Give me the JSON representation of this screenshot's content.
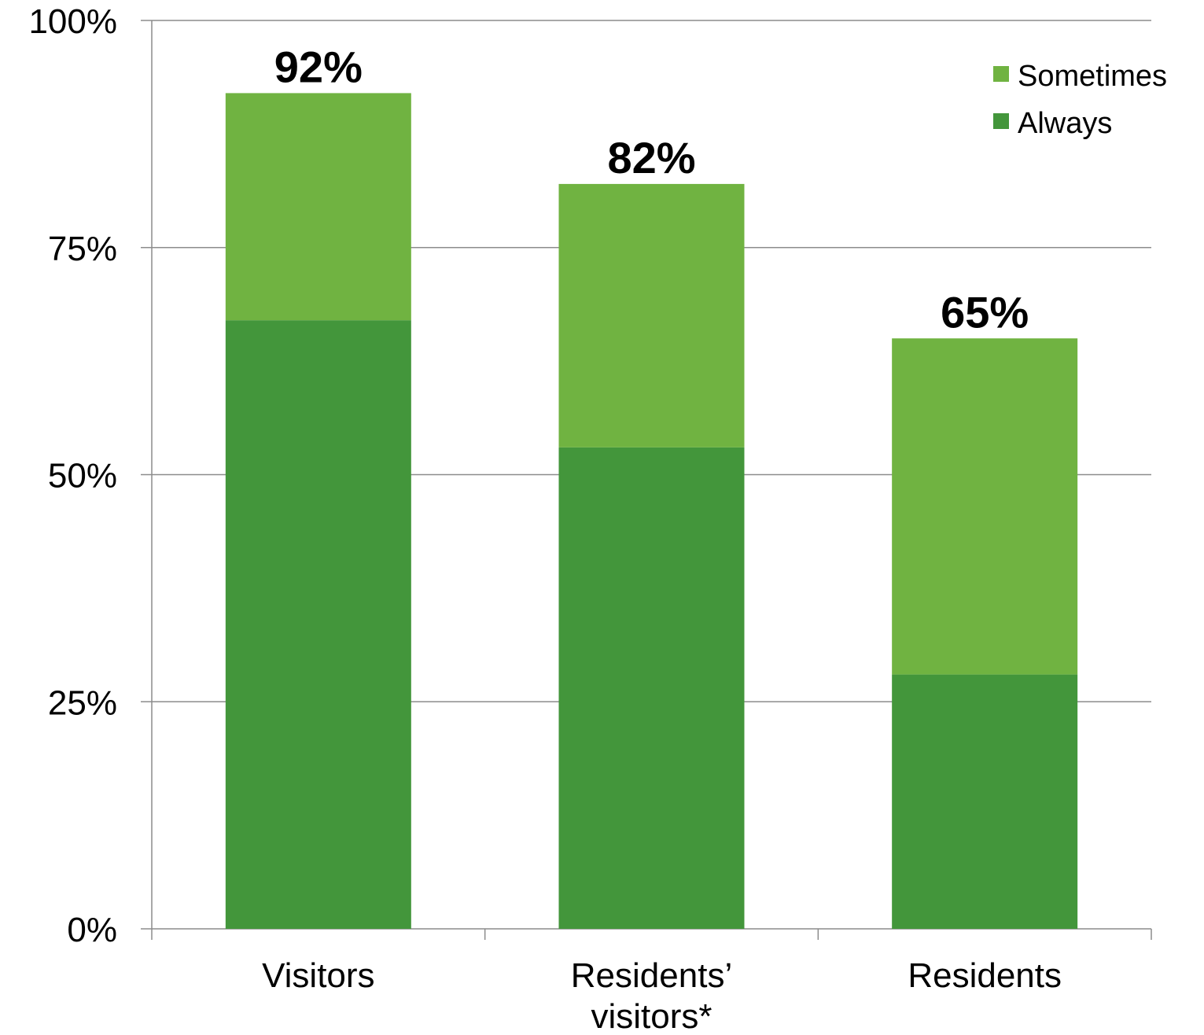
{
  "chart_data": {
    "type": "bar",
    "stacked": true,
    "categories": [
      "Visitors",
      [
        "Residents’",
        "visitors*"
      ],
      "Residents"
    ],
    "series": [
      {
        "name": "Always",
        "values": [
          67,
          53,
          28
        ],
        "color": "#43963b"
      },
      {
        "name": "Sometimes",
        "values": [
          25,
          29,
          37
        ],
        "color": "#70b341"
      }
    ],
    "totals": [
      "92%",
      "82%",
      "65%"
    ],
    "yticks": [
      "0%",
      "25%",
      "50%",
      "75%",
      "100%"
    ],
    "ylim": [
      0,
      100
    ],
    "grid": true,
    "legend_position": "top-right",
    "legend_order": [
      "Sometimes",
      "Always"
    ],
    "title": "",
    "xlabel": "",
    "ylabel": ""
  }
}
